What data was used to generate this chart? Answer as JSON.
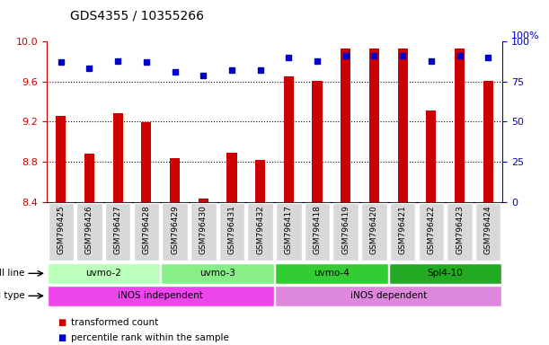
{
  "title": "GDS4355 / 10355266",
  "samples": [
    "GSM796425",
    "GSM796426",
    "GSM796427",
    "GSM796428",
    "GSM796429",
    "GSM796430",
    "GSM796431",
    "GSM796432",
    "GSM796417",
    "GSM796418",
    "GSM796419",
    "GSM796420",
    "GSM796421",
    "GSM796422",
    "GSM796423",
    "GSM796424"
  ],
  "transformed_count": [
    9.26,
    8.88,
    9.28,
    9.19,
    8.84,
    8.43,
    8.89,
    8.82,
    9.65,
    9.61,
    9.93,
    9.93,
    9.93,
    9.31,
    9.93,
    9.61
  ],
  "percentile_rank": [
    87,
    83,
    88,
    87,
    81,
    79,
    82,
    82,
    90,
    88,
    91,
    91,
    91,
    88,
    91,
    90
  ],
  "ylim_left": [
    8.4,
    10.0
  ],
  "ylim_right": [
    0,
    100
  ],
  "yticks_left": [
    8.4,
    8.8,
    9.2,
    9.6,
    10.0
  ],
  "yticks_right": [
    0,
    25,
    50,
    75,
    100
  ],
  "cell_lines": [
    {
      "label": "uvmo-2",
      "start": 0,
      "end": 4,
      "color": "#bbffbb"
    },
    {
      "label": "uvmo-3",
      "start": 4,
      "end": 8,
      "color": "#88ee88"
    },
    {
      "label": "uvmo-4",
      "start": 8,
      "end": 12,
      "color": "#33cc33"
    },
    {
      "label": "Spl4-10",
      "start": 12,
      "end": 16,
      "color": "#22aa22"
    }
  ],
  "cell_types": [
    {
      "label": "iNOS independent",
      "start": 0,
      "end": 8,
      "color": "#ee44ee"
    },
    {
      "label": "iNOS dependent",
      "start": 8,
      "end": 16,
      "color": "#dd88dd"
    }
  ],
  "bar_color": "#cc0000",
  "dot_color": "#0000cc",
  "bar_bottom": 8.4,
  "grid_dotted": [
    8.8,
    9.2,
    9.6
  ],
  "ylabel_left_color": "#cc0000",
  "ylabel_right_color": "#0000cc",
  "legend_items": [
    {
      "color": "#cc0000",
      "label": "transformed count"
    },
    {
      "color": "#0000cc",
      "label": "percentile rank within the sample"
    }
  ],
  "title_fontsize": 10,
  "tick_fontsize": 8,
  "sample_fontsize": 6.5,
  "bar_width": 0.35
}
